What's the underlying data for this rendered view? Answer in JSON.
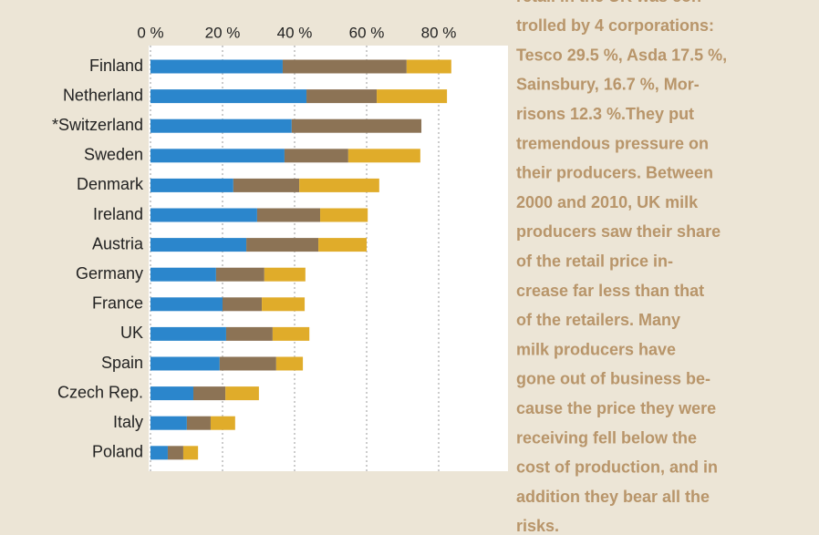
{
  "chart_data": {
    "type": "stacked-barh",
    "categories": [
      "Finland",
      "Netherland",
      "*Switzerland",
      "Sweden",
      "Denmark",
      "Ireland",
      "Austria",
      "Germany",
      "France",
      "UK",
      "Spain",
      "Czech Rep.",
      "Italy",
      "Poland"
    ],
    "series": [
      {
        "color": "#2b86cc",
        "values": [
          36.7,
          43.3,
          39.2,
          37.2,
          23.0,
          29.6,
          26.6,
          18.2,
          20.0,
          21.0,
          19.2,
          11.9,
          10.1,
          4.8
        ]
      },
      {
        "color": "#8c7355",
        "values": [
          34.4,
          19.5,
          36.0,
          17.7,
          18.3,
          17.5,
          20.0,
          13.4,
          10.9,
          12.9,
          15.7,
          8.9,
          6.6,
          4.3
        ]
      },
      {
        "color": "#e0ac2a",
        "values": [
          12.4,
          19.5,
          null,
          20.0,
          22.2,
          13.2,
          13.4,
          11.4,
          11.9,
          10.2,
          7.4,
          9.3,
          6.8,
          4.1
        ]
      }
    ],
    "xlim": [
      0,
      100
    ],
    "xticks": [
      {
        "value": 0,
        "label": "0 %"
      },
      {
        "value": 20,
        "label": "20 %"
      },
      {
        "value": 40,
        "label": "40 %"
      },
      {
        "value": 60,
        "label": "60 %"
      },
      {
        "value": 80,
        "label": "80 %"
      }
    ],
    "grid": true
  },
  "aside": {
    "lines": [
      "retail in the UK was con-",
      "trolled by 4 corporations:",
      "Tesco 29.5 %, Asda 17.5 %,",
      "Sainsbury, 16.7 %, Mor-",
      "risons 12.3 %.They put",
      "tremendous pressure on",
      "their producers. Between",
      "2000 and 2010, UK milk",
      "producers saw their share",
      "of the retail price in-",
      "crease far less than that",
      "of the retailers. Many",
      "milk producers have",
      "gone out of business be-",
      "cause the price they were",
      "receiving fell below the",
      "cost of production, and in",
      "addition they bear all the",
      "risks."
    ]
  }
}
